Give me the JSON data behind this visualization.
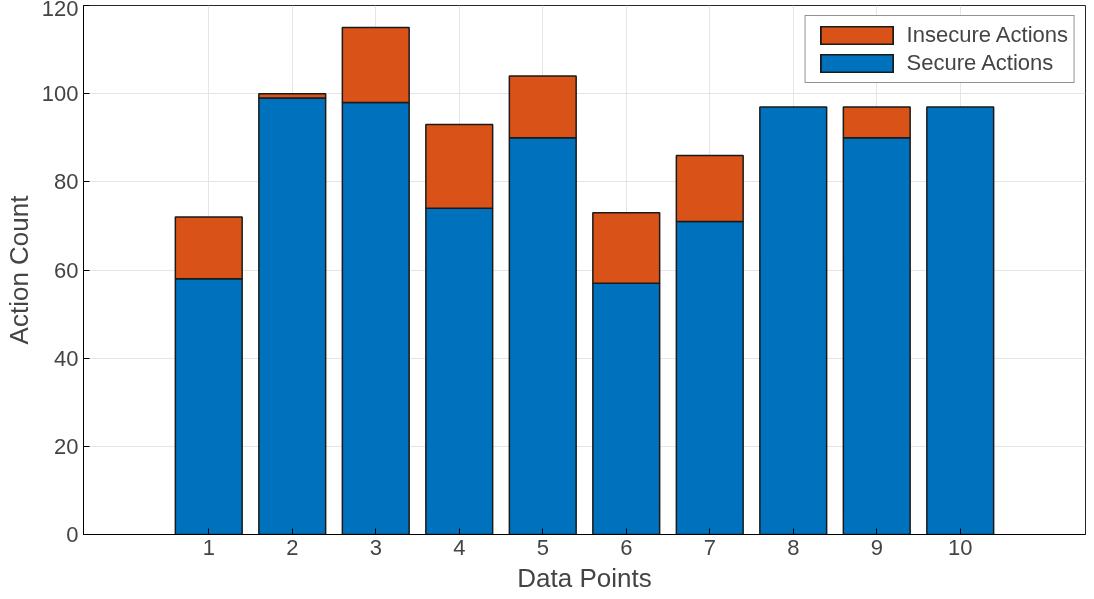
{
  "chart_data": {
    "type": "bar",
    "stacked": true,
    "xlabel": "Data Points",
    "ylabel": "Action Count",
    "categories": [
      "1",
      "2",
      "3",
      "4",
      "5",
      "6",
      "7",
      "8",
      "9",
      "10"
    ],
    "series": [
      {
        "name": "Secure Actions",
        "color": "#0072bd",
        "values": [
          58,
          99,
          98,
          74,
          90,
          57,
          71,
          97,
          90,
          97
        ]
      },
      {
        "name": "Insecure Actions",
        "color": "#d95319",
        "values": [
          14,
          1,
          17,
          19,
          14,
          16,
          15,
          null,
          7,
          null
        ]
      }
    ],
    "ylim": [
      0,
      120
    ],
    "yticks": [
      0,
      20,
      40,
      60,
      80,
      100,
      120
    ],
    "grid": true,
    "legend": "top right"
  }
}
